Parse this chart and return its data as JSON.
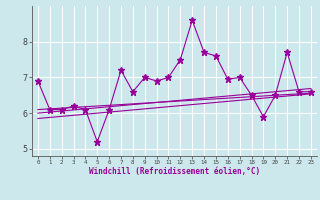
{
  "xlabel": "Windchill (Refroidissement éolien,°C)",
  "x_values": [
    0,
    1,
    2,
    3,
    4,
    5,
    6,
    7,
    8,
    9,
    10,
    11,
    12,
    13,
    14,
    15,
    16,
    17,
    18,
    19,
    20,
    21,
    22,
    23
  ],
  "main_y": [
    6.9,
    6.1,
    6.1,
    6.2,
    6.1,
    5.2,
    6.1,
    7.2,
    6.6,
    7.0,
    6.9,
    7.0,
    7.5,
    8.6,
    7.7,
    7.6,
    6.95,
    7.0,
    6.5,
    5.9,
    6.5,
    7.7,
    6.6,
    6.6
  ],
  "reg_y1": [
    5.85,
    5.88,
    5.91,
    5.94,
    5.97,
    6.0,
    6.03,
    6.06,
    6.09,
    6.12,
    6.15,
    6.18,
    6.21,
    6.24,
    6.27,
    6.3,
    6.33,
    6.36,
    6.39,
    6.42,
    6.45,
    6.48,
    6.51,
    6.54
  ],
  "reg_y2": [
    6.0,
    6.03,
    6.06,
    6.09,
    6.12,
    6.15,
    6.18,
    6.21,
    6.24,
    6.27,
    6.3,
    6.33,
    6.36,
    6.39,
    6.42,
    6.45,
    6.48,
    6.51,
    6.54,
    6.57,
    6.6,
    6.63,
    6.66,
    6.69
  ],
  "reg_y3": [
    6.1,
    6.12,
    6.14,
    6.16,
    6.18,
    6.2,
    6.22,
    6.24,
    6.26,
    6.28,
    6.3,
    6.32,
    6.34,
    6.36,
    6.38,
    6.4,
    6.42,
    6.44,
    6.46,
    6.48,
    6.5,
    6.52,
    6.54,
    6.56
  ],
  "line_color": "#990099",
  "bg_color": "#cce8ec",
  "grid_color": "#ffffff",
  "ylim": [
    4.8,
    9.0
  ],
  "yticks": [
    5,
    6,
    7,
    8
  ],
  "marker": "*",
  "marker_size": 5,
  "line_width": 0.8
}
